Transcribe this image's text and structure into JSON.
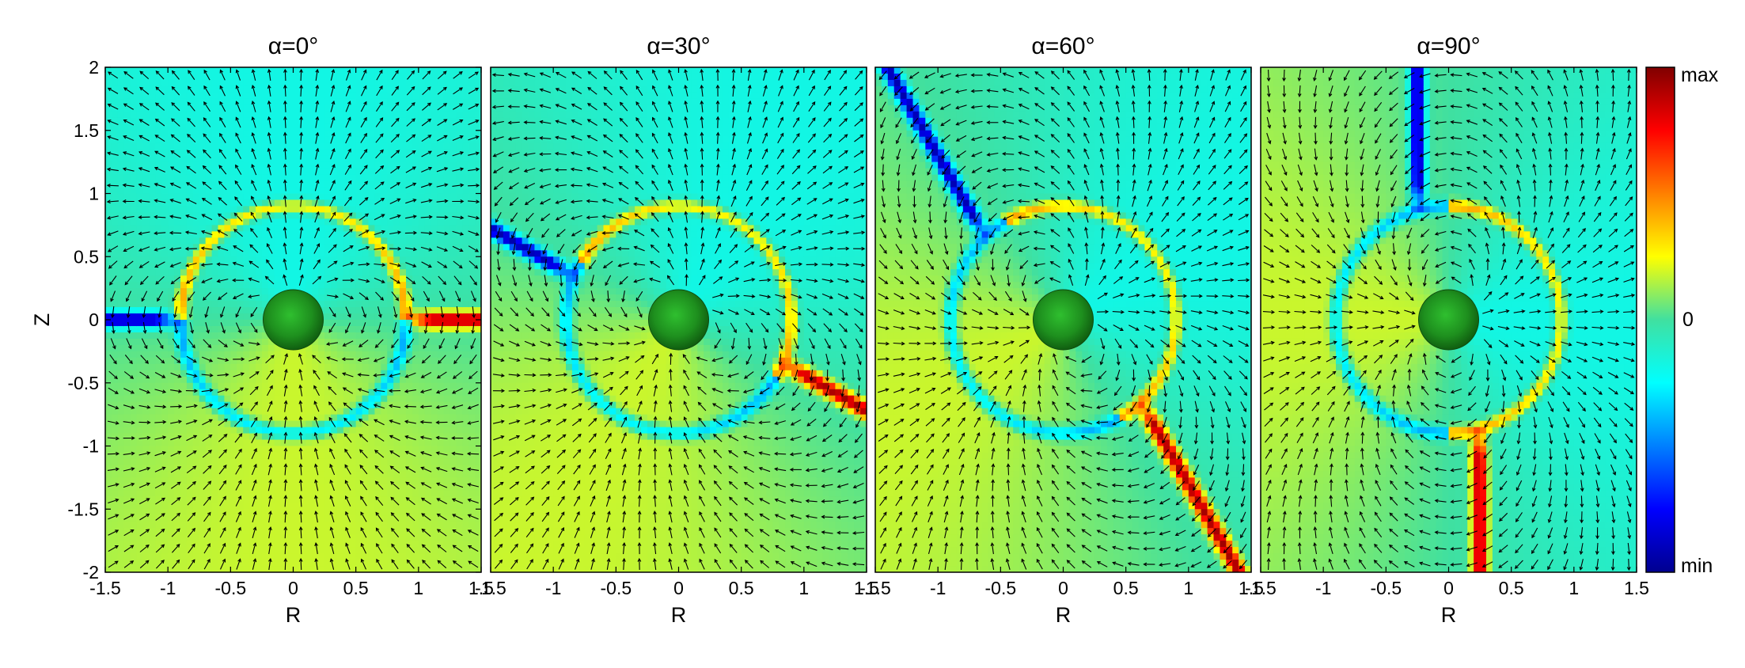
{
  "chart_data": [
    {
      "type": "heatmap",
      "title": "α=0°",
      "alpha_deg": 0,
      "xlabel": "R",
      "ylabel": "Z",
      "xlim": [
        -1.5,
        1.5
      ],
      "ylim": [
        -2,
        2
      ],
      "x_ticks": [
        "-1.5",
        "-1",
        "-0.5",
        "0",
        "0.5",
        "1",
        "1.5"
      ],
      "y_ticks": [
        "2",
        "1.5",
        "1",
        "0.5",
        "0",
        "-0.5",
        "-1",
        "-1.5",
        "-2"
      ],
      "overlay": "vector field arrows",
      "central_body_color": "#1a8a1a"
    },
    {
      "type": "heatmap",
      "title": "α=30°",
      "alpha_deg": 30,
      "xlabel": "R",
      "xlim": [
        -1.5,
        1.5
      ],
      "ylim": [
        -2,
        2
      ],
      "x_ticks": [
        "-1.5",
        "-1",
        "-0.5",
        "0",
        "0.5",
        "1",
        "1.5"
      ],
      "overlay": "vector field arrows",
      "central_body_color": "#1a8a1a"
    },
    {
      "type": "heatmap",
      "title": "α=60°",
      "alpha_deg": 60,
      "xlabel": "R",
      "xlim": [
        -1.5,
        1.5
      ],
      "ylim": [
        -2,
        2
      ],
      "x_ticks": [
        "-1.5",
        "-1",
        "-0.5",
        "0",
        "0.5",
        "1",
        "1.5"
      ],
      "overlay": "vector field arrows",
      "central_body_color": "#1a8a1a"
    },
    {
      "type": "heatmap",
      "title": "α=90°",
      "alpha_deg": 90,
      "xlabel": "R",
      "xlim": [
        -1.5,
        1.5
      ],
      "ylim": [
        -2,
        2
      ],
      "x_ticks": [
        "-1.5",
        "-1",
        "-0.5",
        "0",
        "0.5",
        "1",
        "1.5"
      ],
      "overlay": "vector field arrows",
      "central_body_color": "#1a8a1a"
    }
  ],
  "colorbar": {
    "max_label": "max",
    "mid_label": "0",
    "min_label": "min",
    "colormap": "jet"
  }
}
